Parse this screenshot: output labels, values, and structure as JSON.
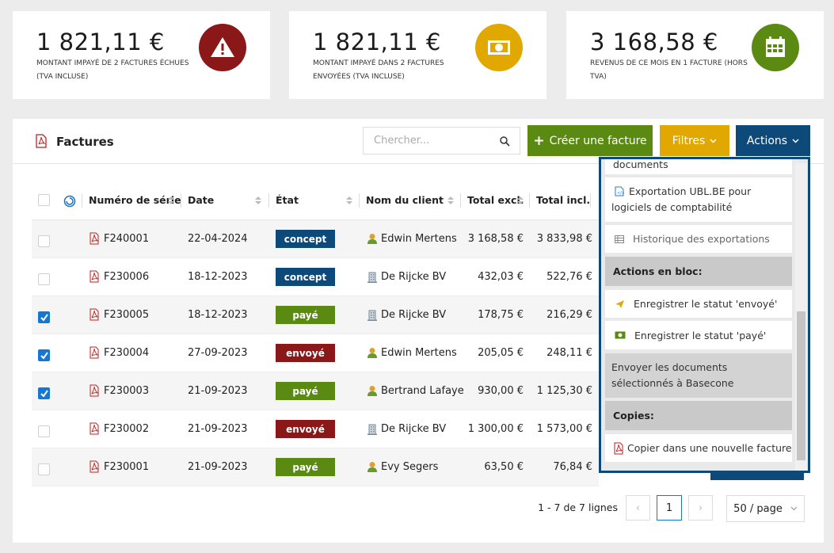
{
  "kpis": [
    {
      "amount": "1 821,11 €",
      "label": "MONTANT IMPAYÉ DE 2 FACTURES ÉCHUES (TVA INCLUSE)"
    },
    {
      "amount": "1 821,11 €",
      "label": "MONTANT IMPAYÉ DANS 2 FACTURES ENVOYÉES (TVA INCLUSE)"
    },
    {
      "amount": "3 168,58 €",
      "label": "REVENUS DE CE MOIS EN 1 FACTURE (HORS TVA)"
    }
  ],
  "panel": {
    "title": "Factures",
    "search_placeholder": "Chercher...",
    "buttons": {
      "create": "Créer une facture",
      "filters": "Filtres",
      "actions": "Actions"
    }
  },
  "table": {
    "columns": [
      "Numéro de série",
      "Date",
      "État",
      "Nom du client",
      "Total excl.",
      "Total incl."
    ],
    "rows": [
      [
        "F240001",
        "22-04-2024",
        "concept",
        "Edwin Mertens",
        "3 168,58 €",
        "3 833,98 €"
      ],
      [
        "F230006",
        "18-12-2023",
        "concept",
        "De Rijcke BV",
        "432,03 €",
        "522,76 €"
      ],
      [
        "F230005",
        "18-12-2023",
        "payé",
        "De Rijcke BV",
        "178,75 €",
        "216,29 €"
      ],
      [
        "F230004",
        "27-09-2023",
        "envoyé",
        "Edwin Mertens",
        "205,05 €",
        "248,11 €"
      ],
      [
        "F230003",
        "21-09-2023",
        "payé",
        "Bertrand Lafaye",
        "930,00 €",
        "1 125,30 €"
      ],
      [
        "F230002",
        "21-09-2023",
        "envoyé",
        "De Rijcke BV",
        "1 300,00 €",
        "1 573,00 €"
      ],
      [
        "F230001",
        "21-09-2023",
        "payé",
        "Evy Segers",
        "63,50 €",
        "76,84 €"
      ]
    ]
  },
  "dropdown": {
    "cut_item": "documents",
    "export_ubl": "Exportation UBL.BE pour logiciels de comptabilité",
    "history": "Historique des exportations",
    "bulk_header": "Actions en bloc:",
    "mark_sent": "Enregistrer le statut 'envoyé'",
    "mark_paid": "Enregistrer le statut 'payé'",
    "send_basecone": "Envoyer les documents sélectionnés à Basecone",
    "copies_header": "Copies:",
    "copy_new": "Copier dans une nouvelle facture"
  },
  "pagination": {
    "summary": "1 - 7 de 7 lignes",
    "page": "1",
    "page_size": "50 / page"
  }
}
